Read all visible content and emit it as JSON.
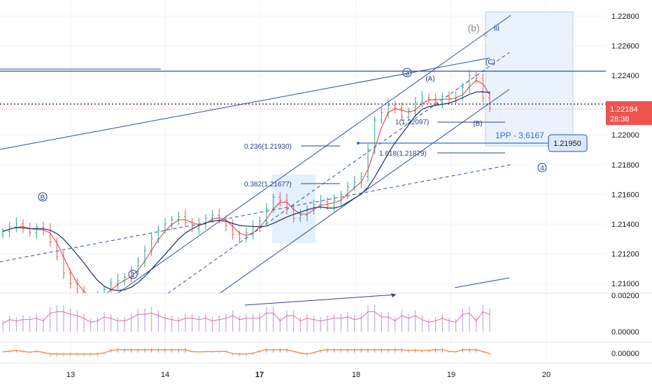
{
  "chart_data": {
    "type": "candlestick",
    "instrument_price_axis": [
      "1.22800",
      "1.22600",
      "1.22400",
      "1.22200",
      "1.22000",
      "1.21800",
      "1.21600",
      "1.21400",
      "1.21200",
      "1.21000"
    ],
    "x_ticks": [
      "13",
      "14",
      "17",
      "18",
      "19",
      "20"
    ],
    "x_ticks_bold": [
      "17"
    ],
    "ylim": [
      1.2095,
      1.2287
    ],
    "current_price": "1.22184",
    "countdown": "28:38",
    "pivot": {
      "label": "1PP - 3,6167",
      "price": "1.21950",
      "value": 1.2195
    },
    "resistance_level": 1.2243,
    "fibs": {
      "f0236": "0.236(1.21930)",
      "f0382": "0.382(1.21677)",
      "f1": "1(1.22097)",
      "f1618": "1.618(1.21879)"
    },
    "waves": {
      "b": "B",
      "w1": "1",
      "w3": "3",
      "w4": "4",
      "A": "(A)",
      "B": "(B)",
      "C": "(C)",
      "b_lower": "(b)",
      "c_lower": "c",
      "iii": "iii"
    },
    "osc1_labels": [
      "0.00200",
      "0.00000"
    ],
    "osc2_labels": [
      "0.00000"
    ],
    "series_close": [
      1.2135,
      1.2138,
      1.214,
      1.2137,
      1.2134,
      1.2138,
      1.2136,
      1.2128,
      1.2118,
      1.2107,
      1.21,
      1.2094,
      1.209,
      1.2089,
      1.2091,
      1.2096,
      1.21,
      1.2102,
      1.2104,
      1.2108,
      1.2115,
      1.2122,
      1.213,
      1.2136,
      1.214,
      1.2143,
      1.2145,
      1.2141,
      1.2137,
      1.214,
      1.2144,
      1.2146,
      1.2143,
      1.2139,
      1.2133,
      1.213,
      1.2134,
      1.2138,
      1.2142,
      1.215,
      1.2158,
      1.2156,
      1.215,
      1.2144,
      1.2146,
      1.215,
      1.2153,
      1.2155,
      1.2152,
      1.2156,
      1.216,
      1.2165,
      1.2168,
      1.2172,
      1.219,
      1.221,
      1.2215,
      1.222,
      1.2218,
      1.2212,
      1.2216,
      1.2222,
      1.2225,
      1.2224,
      1.2222,
      1.2226,
      1.2224,
      1.2225,
      1.2232,
      1.224,
      1.2238,
      1.2225,
      1.2218
    ]
  }
}
